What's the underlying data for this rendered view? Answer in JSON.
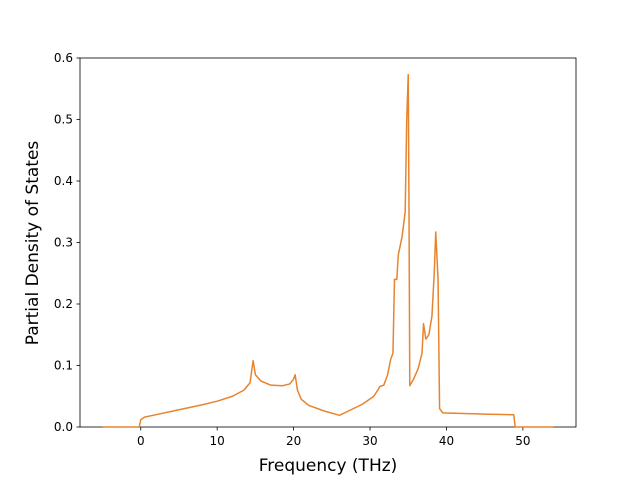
{
  "chart_data": {
    "type": "line",
    "xlabel": "Frequency (THz)",
    "ylabel": "Partial Density of States",
    "x": [
      -5,
      -0.2,
      0,
      0.5,
      2,
      5,
      8,
      10,
      12,
      13.5,
      14.3,
      14.7,
      15,
      15.7,
      17,
      18.5,
      19.5,
      20,
      20.2,
      20.5,
      21,
      22,
      24,
      26,
      27,
      29,
      30.5,
      31,
      31.3,
      31.8,
      32.3,
      32.7,
      33,
      33.2,
      33.5,
      33.7,
      34.2,
      34.6,
      34.8,
      35,
      35.1,
      35.2,
      35.7,
      36.3,
      36.8,
      37,
      37.3,
      37.7,
      38.1,
      38.4,
      38.6,
      38.9,
      39.1,
      39.5,
      45,
      48.8,
      49,
      54
    ],
    "series": [
      {
        "color": "#e8832e",
        "values": [
          0,
          0,
          0.012,
          0.016,
          0.02,
          0.028,
          0.036,
          0.042,
          0.05,
          0.06,
          0.072,
          0.108,
          0.085,
          0.075,
          0.068,
          0.067,
          0.07,
          0.078,
          0.085,
          0.06,
          0.045,
          0.035,
          0.026,
          0.019,
          0.025,
          0.037,
          0.05,
          0.06,
          0.066,
          0.068,
          0.085,
          0.11,
          0.12,
          0.24,
          0.24,
          0.28,
          0.31,
          0.35,
          0.5,
          0.573,
          0.35,
          0.067,
          0.078,
          0.095,
          0.12,
          0.168,
          0.143,
          0.15,
          0.18,
          0.25,
          0.317,
          0.24,
          0.03,
          0.023,
          0.021,
          0.02,
          0,
          0
        ]
      }
    ],
    "xlim": [
      -7.95,
      56.95
    ],
    "xticks": [
      0,
      10,
      20,
      30,
      40,
      50
    ],
    "ylim": [
      0,
      0.6
    ],
    "yticks": [
      {
        "value": 0,
        "label": "0.0"
      },
      0.1,
      0.2,
      0.3,
      0.4,
      0.5,
      0.6
    ]
  }
}
